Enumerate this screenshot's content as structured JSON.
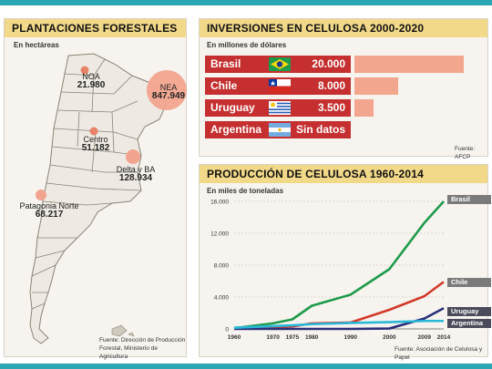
{
  "plantaciones": {
    "title": "PLANTACIONES FORESTALES",
    "subtitle": "En hectáreas",
    "regions": [
      {
        "name": "NOA",
        "value": "21.980"
      },
      {
        "name": "NEA",
        "value": "847.949"
      },
      {
        "name": "Centro",
        "value": "51.182"
      },
      {
        "name": "Delta y BA",
        "value": "128.934"
      },
      {
        "name": "Patagonia Norte",
        "value": "68.217"
      }
    ],
    "source_line1": "Fuente: Dirección de Producción",
    "source_line2": "Forestal, Ministerio de Agricultura",
    "colors": {
      "bubble": "#f2a48e",
      "dot": "#e8836a"
    }
  },
  "inversiones": {
    "title": "INVERSIONES EN CELULOSA 2000-2020",
    "subtitle": "En millones de dólares",
    "source": "Fuente: AFCP",
    "colors": {
      "label_bg": "#c62f2f",
      "bar": "#f3a68e",
      "header": "#f2d98a"
    }
  },
  "produccion": {
    "title": "PRODUCCIÓN DE CELULOSA 1960-2014",
    "subtitle": "En miles de toneladas",
    "source": "Fuente: Asociación de Celulosa y Papel"
  },
  "chart_data": [
    {
      "type": "bar",
      "title": "INVERSIONES EN CELULOSA 2000-2020",
      "ylabel": "En millones de dólares",
      "categories": [
        "Brasil",
        "Chile",
        "Uruguay",
        "Argentina"
      ],
      "values": [
        20000,
        8000,
        3500,
        null
      ],
      "value_labels": [
        "20.000",
        "8.000",
        "3.500",
        "Sin datos"
      ]
    },
    {
      "type": "line",
      "title": "PRODUCCIÓN DE CELULOSA 1960-2014",
      "ylabel": "En miles de toneladas",
      "x": [
        1960,
        1970,
        1975,
        1980,
        1990,
        2000,
        2009,
        2014
      ],
      "x_tick_labels": [
        "1960",
        "1970",
        "1975",
        "1980",
        "1990",
        "2000",
        "2009",
        "2014"
      ],
      "y_ticks": [
        0,
        4000,
        8000,
        12000,
        16000
      ],
      "y_tick_labels": [
        "0",
        "4.000",
        "8.000",
        "12.000",
        "16.000"
      ],
      "ylim": [
        0,
        16000
      ],
      "grid": true,
      "series": [
        {
          "name": "Brasil",
          "color": "#1e9a4a",
          "values": [
            100,
            700,
            1200,
            2900,
            4300,
            7500,
            13300,
            16000
          ]
        },
        {
          "name": "Chile",
          "color": "#d23a2a",
          "values": [
            50,
            200,
            300,
            700,
            800,
            2400,
            4100,
            5900
          ]
        },
        {
          "name": "Uruguay",
          "color": "#2a2f7a",
          "values": [
            0,
            0,
            0,
            0,
            0,
            50,
            1300,
            2600
          ]
        },
        {
          "name": "Argentina",
          "color": "#2ab7d8",
          "values": [
            150,
            350,
            450,
            600,
            750,
            850,
            1000,
            1000
          ]
        }
      ]
    }
  ]
}
